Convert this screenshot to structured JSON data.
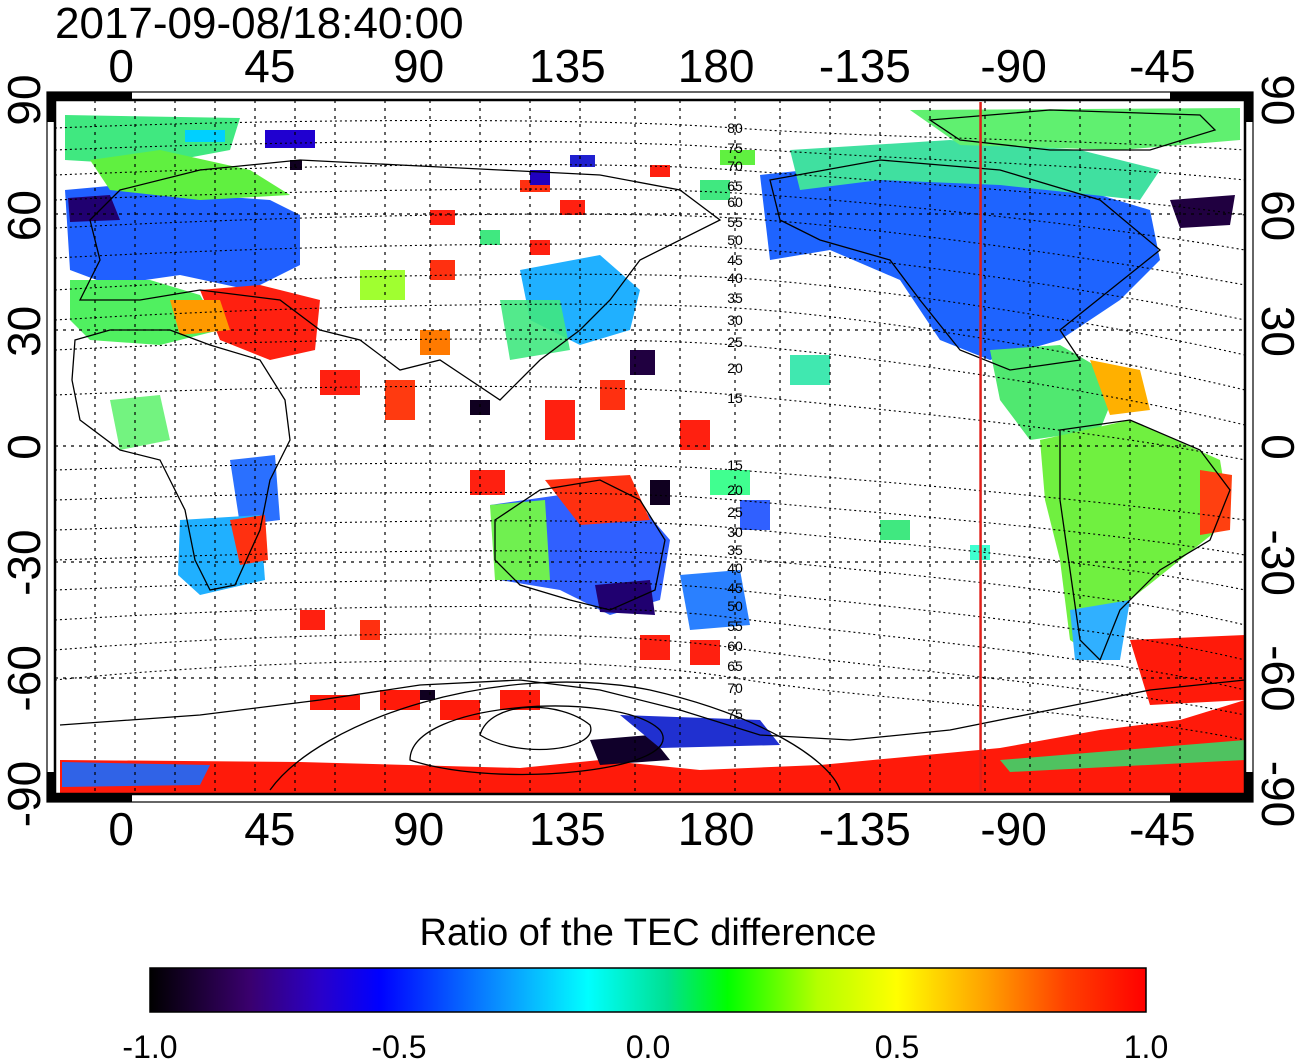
{
  "map": {
    "timestamp": "2017-09-08/18:40:00",
    "top_ticks": [
      "0",
      "45",
      "90",
      "135",
      "180",
      "-135",
      "-90",
      "-45"
    ],
    "bottom_ticks": [
      "0",
      "45",
      "90",
      "135",
      "180",
      "-135",
      "-90",
      "-45"
    ],
    "left_ticks": [
      "90",
      "60",
      "30",
      "0",
      "-30",
      "-60",
      "-90"
    ],
    "right_ticks": [
      "90",
      "60",
      "30",
      "0",
      "-30",
      "-60",
      "-90"
    ],
    "contour_labels_north": [
      "80",
      "75",
      "70",
      "65",
      "60",
      "55",
      "50",
      "45",
      "40",
      "35",
      "30",
      "25",
      "20",
      "15"
    ],
    "contour_labels_south": [
      "15",
      "20",
      "25",
      "30",
      "35",
      "40",
      "45",
      "50",
      "55",
      "60",
      "65",
      "70",
      "75"
    ],
    "meridian_marker_lon": -100,
    "meridian_marker_color": "#e0201a"
  },
  "colorbar": {
    "title": "Ratio of the TEC difference",
    "ticks": [
      "-1.0",
      "-0.5",
      "0.0",
      "0.5",
      "1.0"
    ],
    "range": [
      -1.0,
      1.0
    ],
    "colors": [
      "#000000",
      "#3a006e",
      "#2a00c8",
      "#0000ff",
      "#0a9cff",
      "#00ffff",
      "#00e090",
      "#00ff00",
      "#b4ff00",
      "#ffff00",
      "#ffa000",
      "#ff4000",
      "#ff0000"
    ]
  }
}
